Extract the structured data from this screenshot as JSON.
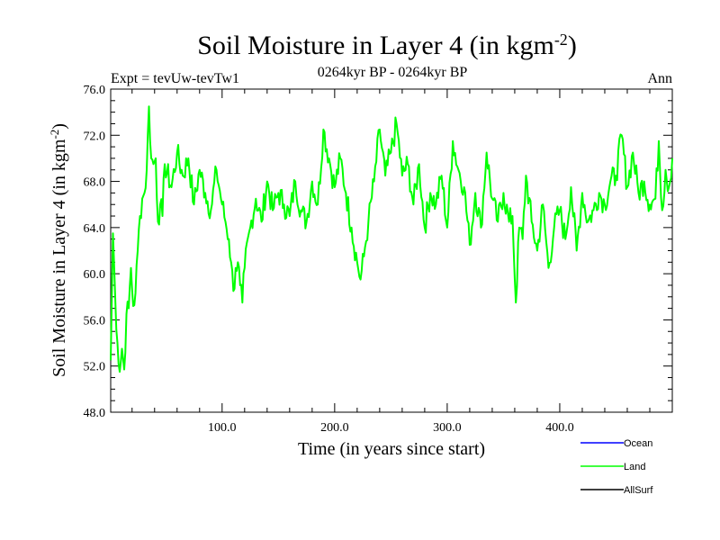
{
  "chart_data": {
    "type": "line",
    "title": "Soil Moisture in Layer 4 (in kgm",
    "title_sup": "-2",
    "title_close": ")",
    "subtitle": "0264kyr BP - 0264kyr BP",
    "experiment": "Expt = tevUw-tevTw1",
    "season": "Ann",
    "xlabel": "Time (in years since start)",
    "ylabel": "Soil Moisture in Layer 4 (in kgm",
    "ylabel_sup": "-2",
    "ylabel_close": ")",
    "xlim": [
      1,
      500
    ],
    "ylim": [
      48,
      76
    ],
    "xticks": [
      100,
      200,
      300,
      400
    ],
    "xtick_labels": [
      "100.0",
      "200.0",
      "300.0",
      "400.0"
    ],
    "yticks": [
      48,
      52,
      56,
      60,
      64,
      68,
      72,
      76
    ],
    "ytick_labels": [
      "48.0",
      "52.0",
      "56.0",
      "60.0",
      "64.0",
      "68.0",
      "72.0",
      "76.0"
    ],
    "legend": [
      {
        "name": "Ocean",
        "color": "#0000ff"
      },
      {
        "name": "Land",
        "color": "#00ff00"
      },
      {
        "name": "AllSurf",
        "color": "#000000"
      }
    ],
    "series": [
      {
        "name": "Land",
        "color": "#00ff00",
        "x": [
          1,
          3,
          5,
          7,
          9,
          11,
          13,
          15,
          17,
          19,
          21,
          23,
          25,
          27,
          29,
          31,
          33,
          35,
          37,
          39,
          41,
          43,
          45,
          47,
          49,
          55,
          60,
          65,
          70,
          75,
          80,
          85,
          90,
          95,
          100,
          103,
          106,
          108,
          110,
          112,
          114,
          116,
          118,
          120,
          125,
          130,
          135,
          140,
          145,
          150,
          155,
          160,
          165,
          170,
          175,
          180,
          185,
          190,
          195,
          200,
          205,
          210,
          215,
          220,
          223,
          226,
          230,
          235,
          240,
          245,
          250,
          255,
          260,
          265,
          270,
          275,
          280,
          285,
          290,
          295,
          300,
          305,
          310,
          315,
          320,
          325,
          330,
          335,
          340,
          345,
          350,
          355,
          358,
          361,
          364,
          367,
          370,
          375,
          380,
          385,
          390,
          395,
          400,
          405,
          410,
          415,
          420,
          425,
          430,
          435,
          440,
          445,
          450,
          455,
          460,
          465,
          470,
          475,
          480,
          485,
          488,
          491,
          494,
          497,
          500
        ],
        "values": [
          52.5,
          63.5,
          58.0,
          54.0,
          51.5,
          53.5,
          51.7,
          56.5,
          57.0,
          60.5,
          57.2,
          58.3,
          62.0,
          65.0,
          66.5,
          67.0,
          69.0,
          74.5,
          70.0,
          69.5,
          70.0,
          64.5,
          66.0,
          65.0,
          69.5,
          67.5,
          70.5,
          68.5,
          70.0,
          66.0,
          69.0,
          67.0,
          65.5,
          69.0,
          66.0,
          64.5,
          63.0,
          61.0,
          58.5,
          60.5,
          61.0,
          59.0,
          57.5,
          60.5,
          64.0,
          66.5,
          64.5,
          68.0,
          65.5,
          67.0,
          66.0,
          65.0,
          68.0,
          65.5,
          64.5,
          68.0,
          66.0,
          72.5,
          70.0,
          67.5,
          70.0,
          67.0,
          64.0,
          61.0,
          59.5,
          61.5,
          64.5,
          68.0,
          72.5,
          68.5,
          70.5,
          73.0,
          68.5,
          69.5,
          66.0,
          69.5,
          64.0,
          67.0,
          66.0,
          68.5,
          64.0,
          71.5,
          69.0,
          67.5,
          62.5,
          67.0,
          64.0,
          70.5,
          66.5,
          64.5,
          67.0,
          64.5,
          65.0,
          57.5,
          64.0,
          63.0,
          68.5,
          64.5,
          62.0,
          66.0,
          60.5,
          64.0,
          65.5,
          63.0,
          67.5,
          62.0,
          67.0,
          64.5,
          65.5,
          67.0,
          66.0,
          68.0,
          68.5,
          72.0,
          67.5,
          70.5,
          67.0,
          68.0,
          66.0,
          66.5,
          71.5,
          65.5,
          69.0,
          67.5,
          70.0
        ]
      }
    ]
  }
}
